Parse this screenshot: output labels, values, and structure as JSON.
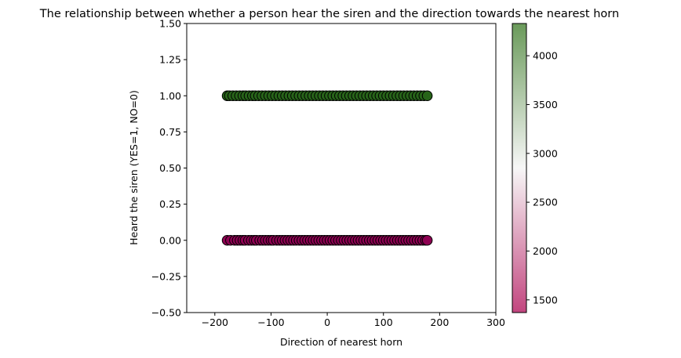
{
  "chart_data": {
    "type": "scatter",
    "title": "The relationship between whether a person hear the siren and the direction towards the nearest horn",
    "xlabel": "Direction of nearest horn",
    "ylabel": "Heard the siren (YES=1, NO=0)",
    "xlim": [
      -250,
      300
    ],
    "ylim": [
      -0.5,
      1.5
    ],
    "xticks": [
      -200,
      -100,
      0,
      100,
      200,
      300
    ],
    "xtick_labels": [
      "−200",
      "−100",
      "0",
      "100",
      "200",
      "300"
    ],
    "yticks": [
      -0.5,
      -0.25,
      0.0,
      0.25,
      0.5,
      0.75,
      1.0,
      1.25,
      1.5
    ],
    "ytick_labels": [
      "−0.50",
      "−0.25",
      "0.00",
      "0.25",
      "0.50",
      "0.75",
      "1.00",
      "1.25",
      "1.50"
    ],
    "grid": false,
    "marker_edge_color": "#000000",
    "colorbar": {
      "colormap": "PiYG",
      "range": [
        1370,
        4330
      ],
      "ticks": [
        1500,
        2000,
        2500,
        3000,
        3500,
        4000
      ],
      "tick_labels": [
        "1500",
        "2000",
        "2500",
        "3000",
        "3500",
        "4000"
      ],
      "low_color": "#c2467f",
      "mid_color": "#f7f7f7",
      "high_color": "#6a9a5a"
    },
    "series": [
      {
        "y": 0,
        "color": "#8e0152",
        "x": [
          -178,
          -172,
          -165,
          -160,
          -155,
          -150,
          -146,
          -140,
          -135,
          -130,
          -126,
          -120,
          -115,
          -110,
          -105,
          -100,
          -96,
          -90,
          -85,
          -80,
          -75,
          -70,
          -65,
          -60,
          -55,
          -50,
          -45,
          -40,
          -35,
          -30,
          -25,
          -20,
          -15,
          -10,
          -5,
          0,
          5,
          10,
          15,
          20,
          25,
          30,
          35,
          40,
          45,
          50,
          55,
          60,
          65,
          70,
          75,
          80,
          85,
          90,
          95,
          100,
          105,
          110,
          115,
          120,
          125,
          130,
          135,
          140,
          145,
          150,
          155,
          160,
          165,
          170,
          175,
          178
        ]
      },
      {
        "y": 1,
        "color": "#276419",
        "x": [
          -178,
          -174,
          -168,
          -162,
          -156,
          -150,
          -145,
          -139,
          -133,
          -128,
          -122,
          -116,
          -110,
          -104,
          -98,
          -92,
          -86,
          -80,
          -74,
          -68,
          -62,
          -56,
          -50,
          -44,
          -38,
          -32,
          -26,
          -20,
          -14,
          -8,
          -2,
          4,
          10,
          16,
          22,
          28,
          34,
          40,
          46,
          52,
          58,
          64,
          70,
          76,
          82,
          88,
          94,
          100,
          106,
          112,
          118,
          124,
          130,
          136,
          142,
          148,
          154,
          160,
          166,
          172,
          178
        ]
      }
    ]
  }
}
